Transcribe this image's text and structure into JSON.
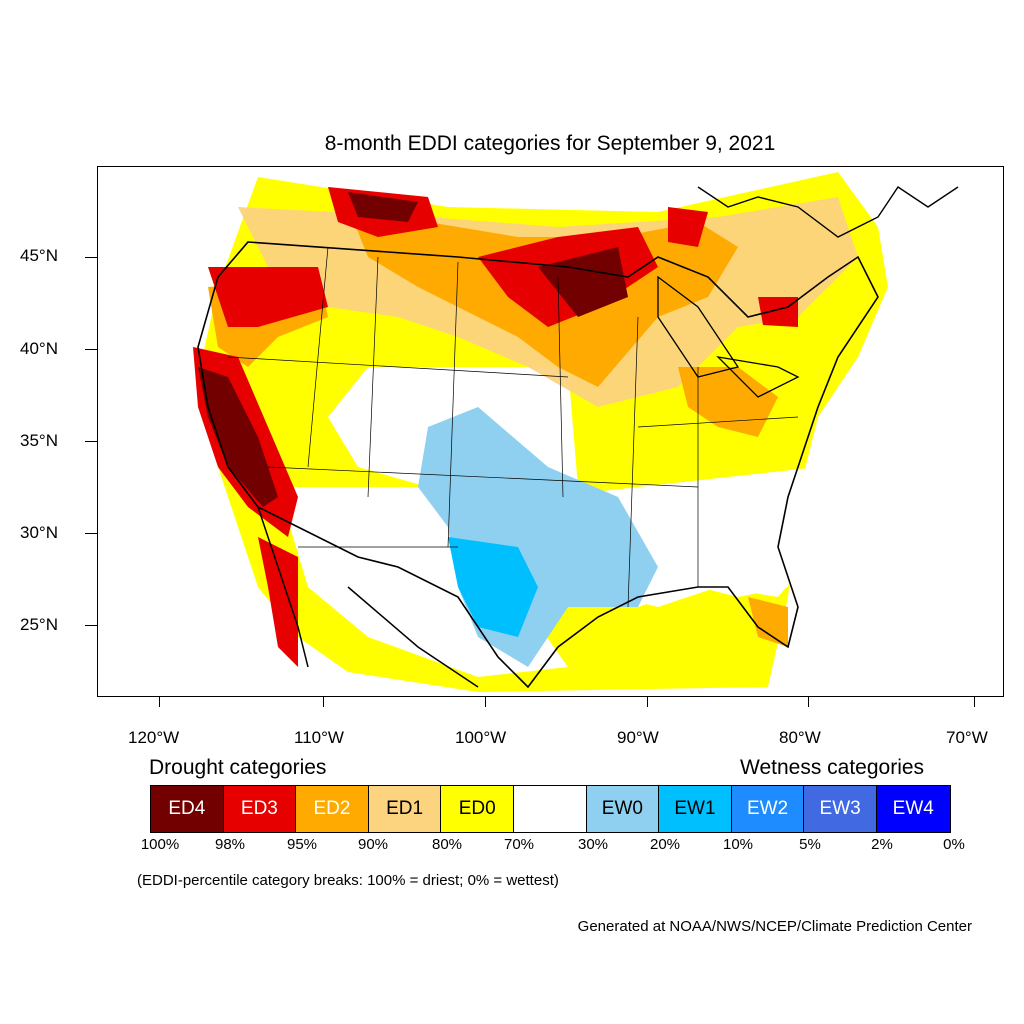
{
  "title": "8-month EDDI categories for September 9, 2021",
  "lat_labels": [
    "45°N",
    "40°N",
    "35°N",
    "30°N",
    "25°N"
  ],
  "lon_labels": [
    "120°W",
    "110°W",
    "100°W",
    "90°W",
    "80°W",
    "70°W"
  ],
  "legend": {
    "drought_heading": "Drought categories",
    "wetness_heading": "Wetness categories",
    "categories": [
      {
        "label": "ED4",
        "color": "#730000",
        "text_color": "#ffffff"
      },
      {
        "label": "ED3",
        "color": "#e60000",
        "text_color": "#ffffff"
      },
      {
        "label": "ED2",
        "color": "#ffaa00",
        "text_color": "#ffffff"
      },
      {
        "label": "ED1",
        "color": "#fcd37f",
        "text_color": "#000000"
      },
      {
        "label": "ED0",
        "color": "#ffff00",
        "text_color": "#000000"
      },
      {
        "label": "",
        "color": "#ffffff",
        "text_color": "#000000"
      },
      {
        "label": "EW0",
        "color": "#8fd0f0",
        "text_color": "#000000"
      },
      {
        "label": "EW1",
        "color": "#00bfff",
        "text_color": "#000000"
      },
      {
        "label": "EW2",
        "color": "#1e8cff",
        "text_color": "#ffffff"
      },
      {
        "label": "EW3",
        "color": "#4169e1",
        "text_color": "#ffffff"
      },
      {
        "label": "EW4",
        "color": "#0000ff",
        "text_color": "#ffffff"
      }
    ],
    "percentiles": [
      "100%",
      "98%",
      "95%",
      "90%",
      "80%",
      "70%",
      "30%",
      "20%",
      "10%",
      "5%",
      "2%",
      "0%"
    ]
  },
  "note": "(EDDI-percentile category breaks: 100% = driest; 0% = wettest)",
  "credit": "Generated at NOAA/NWS/NCEP/Climate Prediction Center"
}
